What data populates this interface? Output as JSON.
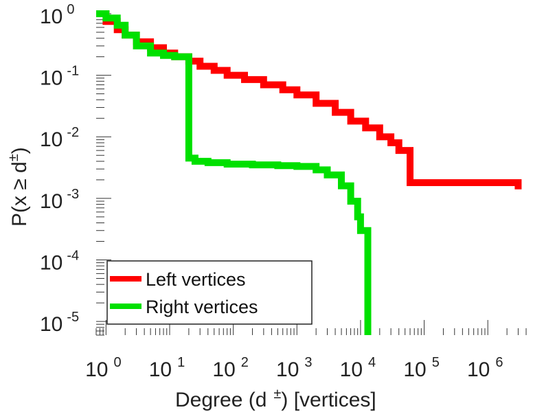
{
  "chart_data": {
    "type": "line",
    "xscale": "log",
    "yscale": "log",
    "xlim": [
      0.7,
      4000000
    ],
    "ylim": [
      6e-06,
      1
    ],
    "xlabel": {
      "main": "Degree (d",
      "sup": "±",
      "tail": ") [vertices]"
    },
    "ylabel": {
      "main": "P(x ≥ d",
      "sup": "±",
      "tail": ")"
    },
    "x_ticks": [
      {
        "base": "10",
        "exp": "0",
        "value": 1
      },
      {
        "base": "10",
        "exp": "1",
        "value": 10
      },
      {
        "base": "10",
        "exp": "2",
        "value": 100
      },
      {
        "base": "10",
        "exp": "3",
        "value": 1000
      },
      {
        "base": "10",
        "exp": "4",
        "value": 10000
      },
      {
        "base": "10",
        "exp": "5",
        "value": 100000
      },
      {
        "base": "10",
        "exp": "6",
        "value": 1000000
      }
    ],
    "y_ticks": [
      {
        "base": "10",
        "exp": "0",
        "value": 1
      },
      {
        "base": "10",
        "exp": "-1",
        "value": 0.1
      },
      {
        "base": "10",
        "exp": "-2",
        "value": 0.01
      },
      {
        "base": "10",
        "exp": "-3",
        "value": 0.001
      },
      {
        "base": "10",
        "exp": "-4",
        "value": 0.0001
      },
      {
        "base": "10",
        "exp": "-5",
        "value": 1e-05
      }
    ],
    "grid": false,
    "legend_position": "bottom-left",
    "series": [
      {
        "name": "Left vertices",
        "color": "#ff0000",
        "x": [
          0.7,
          1,
          1.5,
          2,
          3,
          5,
          8,
          12,
          20,
          30,
          50,
          80,
          150,
          300,
          600,
          1000,
          2000,
          4000,
          7000,
          12000,
          20000,
          30000,
          40000,
          60000,
          60000,
          100000,
          500000,
          1000000,
          3000000,
          3000000
        ],
        "y": [
          1,
          0.75,
          0.55,
          0.45,
          0.35,
          0.28,
          0.23,
          0.2,
          0.17,
          0.14,
          0.12,
          0.1,
          0.085,
          0.07,
          0.058,
          0.048,
          0.035,
          0.025,
          0.018,
          0.014,
          0.01,
          0.008,
          0.006,
          0.004,
          0.0018,
          0.0018,
          0.0018,
          0.0018,
          0.0018,
          0.0014
        ]
      },
      {
        "name": "Right vertices",
        "color": "#00e000",
        "x": [
          0.7,
          1,
          1.5,
          2,
          3,
          5,
          8,
          12,
          20,
          20,
          25,
          40,
          80,
          200,
          500,
          1000,
          2000,
          3000,
          5000,
          7000,
          9000,
          10000,
          11000,
          13000,
          13000
        ],
        "y": [
          1,
          0.85,
          0.65,
          0.45,
          0.3,
          0.23,
          0.21,
          0.2,
          0.19,
          0.0045,
          0.004,
          0.0038,
          0.0036,
          0.0035,
          0.0034,
          0.0033,
          0.0029,
          0.0024,
          0.0016,
          0.0009,
          0.0005,
          0.0003,
          0.0003,
          0.0003,
          6e-06
        ]
      }
    ]
  }
}
